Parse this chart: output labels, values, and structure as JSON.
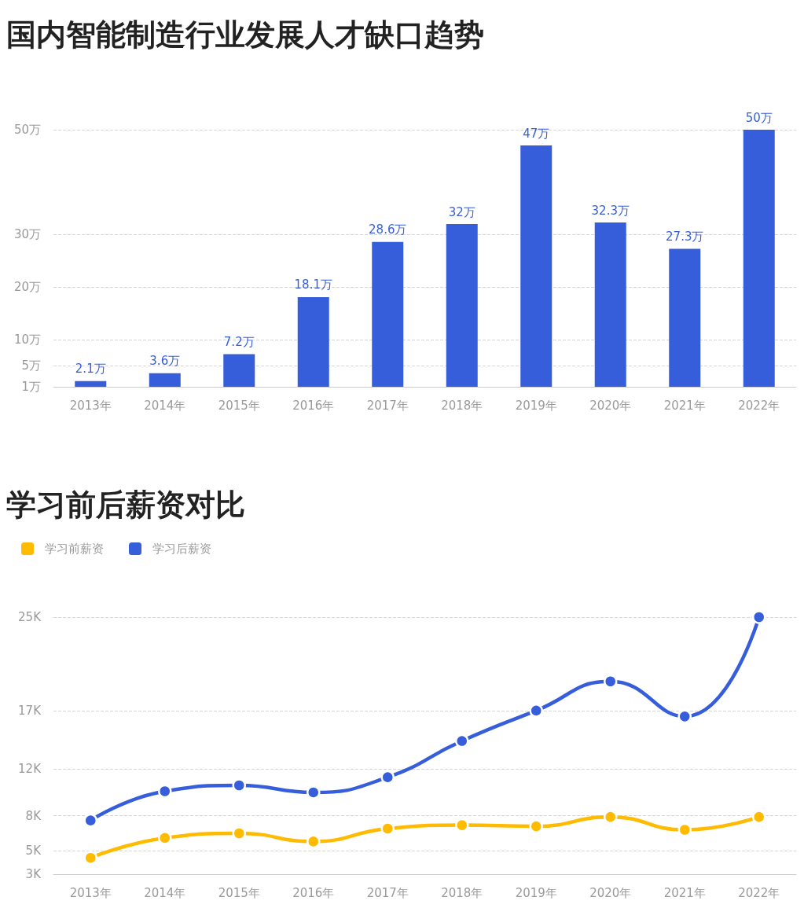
{
  "chart_data": [
    {
      "type": "bar",
      "title": "国内智能制造行业发展人才缺口趋势",
      "categories": [
        "2013年",
        "2014年",
        "2015年",
        "2016年",
        "2017年",
        "2018年",
        "2019年",
        "2020年",
        "2021年",
        "2022年"
      ],
      "values": [
        2.1,
        3.6,
        7.2,
        18.1,
        28.6,
        32,
        47,
        32.3,
        27.3,
        50
      ],
      "value_labels": [
        "2.1万",
        "3.6万",
        "7.2万",
        "18.1万",
        "28.6万",
        "32万",
        "47万",
        "32.3万",
        "27.3万",
        "50万"
      ],
      "color": "#365edb",
      "ylim": [
        1,
        50
      ],
      "yticks": [
        {
          "value": 1,
          "label": "1万"
        },
        {
          "value": 5,
          "label": "5万"
        },
        {
          "value": 10,
          "label": "10万"
        },
        {
          "value": 20,
          "label": "20万"
        },
        {
          "value": 30,
          "label": "30万"
        },
        {
          "value": 50,
          "label": "50万"
        }
      ],
      "grid": "y"
    },
    {
      "type": "line",
      "title": "学习前后薪资对比",
      "categories": [
        "2013年",
        "2014年",
        "2015年",
        "2016年",
        "2017年",
        "2018年",
        "2019年",
        "2020年",
        "2021年",
        "2022年"
      ],
      "series": [
        {
          "name": "学习前薪资",
          "color": "#ffbb00",
          "values": [
            4.4,
            6.1,
            6.5,
            5.8,
            6.9,
            7.2,
            7.1,
            7.9,
            6.8,
            7.9
          ]
        },
        {
          "name": "学习后薪资",
          "color": "#365edb",
          "values": [
            7.6,
            10.1,
            10.6,
            10.0,
            11.3,
            14.4,
            17.0,
            19.5,
            16.5,
            25
          ]
        }
      ],
      "ylim": [
        3,
        25
      ],
      "yticks": [
        {
          "value": 3,
          "label": "3K"
        },
        {
          "value": 5,
          "label": "5K"
        },
        {
          "value": 8,
          "label": "8K"
        },
        {
          "value": 12,
          "label": "12K"
        },
        {
          "value": 17,
          "label": "17K"
        },
        {
          "value": 25,
          "label": "25K"
        }
      ],
      "grid": "y",
      "legend": "top left",
      "marker": "circle",
      "line_style": "solid"
    }
  ]
}
